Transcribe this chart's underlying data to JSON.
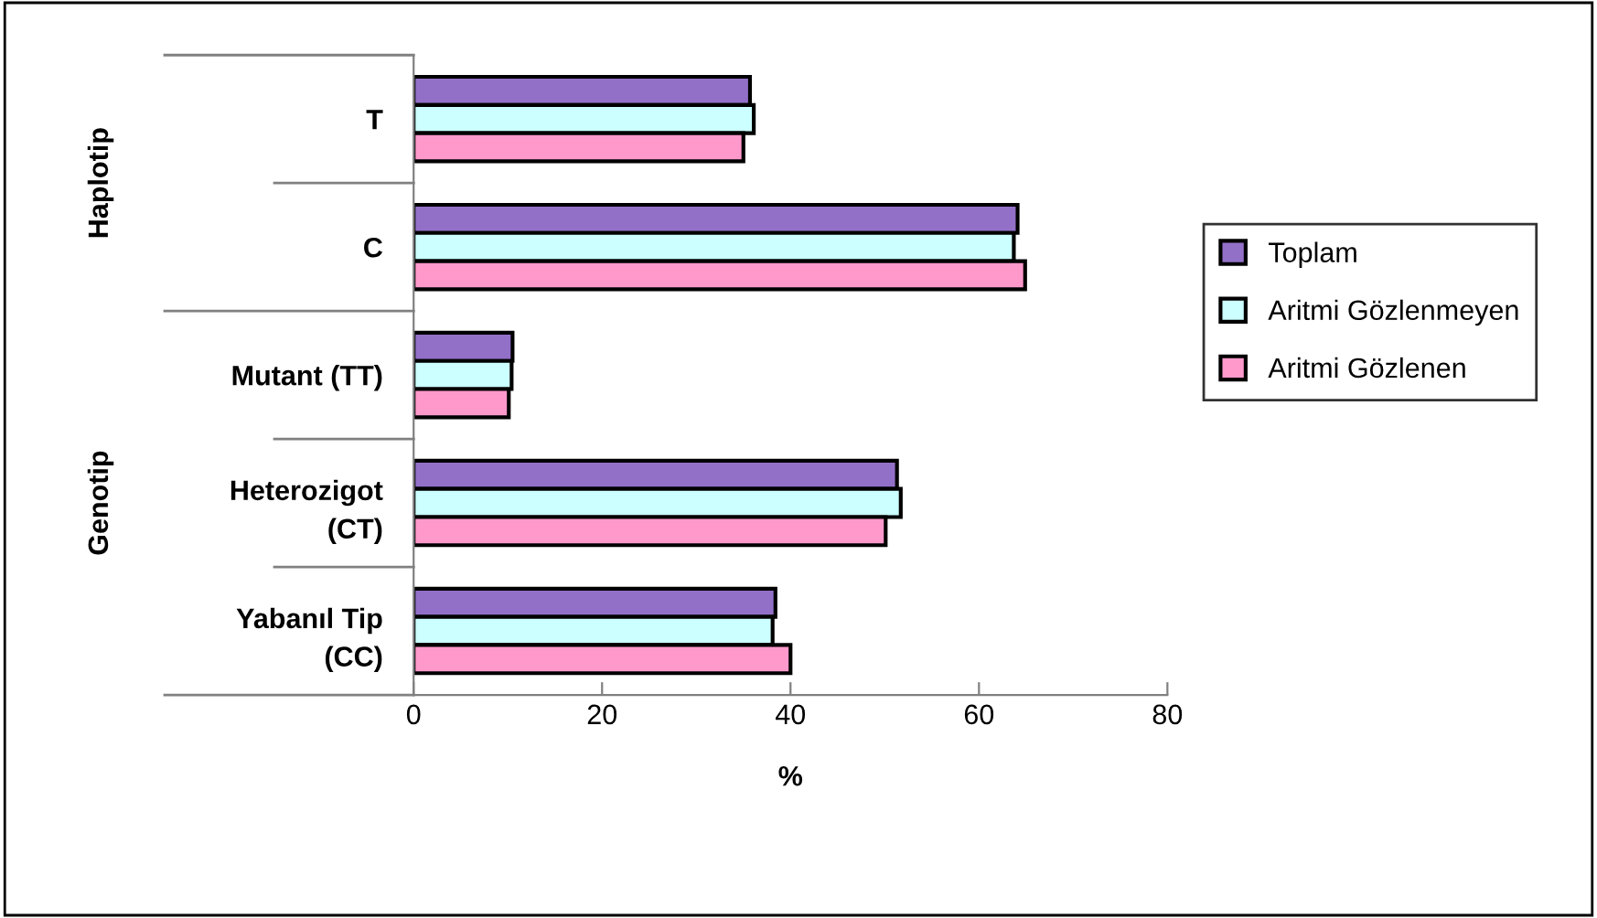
{
  "chart_data": {
    "type": "bar",
    "orientation": "horizontal",
    "xlabel": "%",
    "categories": [
      "T",
      "C",
      "Mutant (TT)",
      "Heterozigot\n(CT)",
      "Yabanıl Tip\n(CC)"
    ],
    "series": [
      {
        "name": "Toplam",
        "color": "#9370c8",
        "values": [
          35.7,
          64.1,
          10.5,
          51.3,
          38.4
        ]
      },
      {
        "name": "Aritmi Gözlenmeyen",
        "color": "#ccffff",
        "values": [
          36.1,
          63.7,
          10.4,
          51.7,
          38.1
        ]
      },
      {
        "name": "Aritmi Gözlenen",
        "color": "#ff99cc",
        "values": [
          35.0,
          64.9,
          10.1,
          50.1,
          40.0
        ]
      }
    ],
    "xlim": [
      0,
      80
    ],
    "xticks": [
      0,
      20,
      40,
      60,
      80
    ],
    "grid": false,
    "legend": "right",
    "annotations": [
      "Haplotip",
      "Genotip"
    ]
  }
}
